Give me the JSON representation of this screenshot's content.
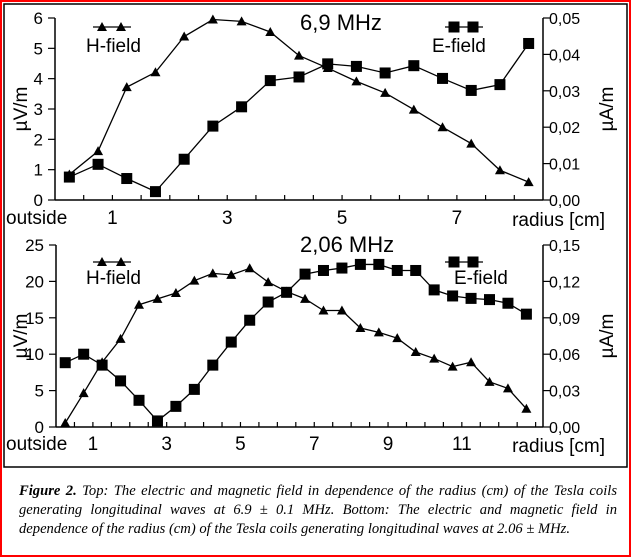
{
  "caption": {
    "label": "Figure 2.",
    "text": " Top: The electric and magnetic field in dependence of the radius (cm) of the Tesla coils generating longitudinal waves at 6.9 ± 0.1 MHz. Bottom: The electric and magnetic field in dependence of the radius (cm) of the Tesla coils generating longitudinal waves at 2.06 ± MHz."
  },
  "chart_data": [
    {
      "type": "line",
      "title": "6,9 MHz",
      "xlabel": "radius [cm]",
      "x_first_label": "outside",
      "ylabel_left": "µV/m",
      "ylabel_right": "µA/m",
      "xticks": [
        "1",
        "3",
        "5",
        "7"
      ],
      "xtick_values": [
        1,
        3,
        5,
        7
      ],
      "yticks_left": [
        "0",
        "1",
        "2",
        "3",
        "4",
        "5",
        "6"
      ],
      "yticks_right": [
        "0,00",
        "0,01",
        "0,02",
        "0,03",
        "0,04",
        "0,05"
      ],
      "xlim": [
        0,
        8.5
      ],
      "ylim_left": [
        0,
        6
      ],
      "ylim_right": [
        0,
        0.05
      ],
      "grid": false,
      "legend_placement": "top-left / top-right",
      "x": [
        0.25,
        0.75,
        1.25,
        1.75,
        2.25,
        2.75,
        3.25,
        3.75,
        4.25,
        4.75,
        5.25,
        5.75,
        6.25,
        6.75,
        7.25,
        7.75,
        8.25
      ],
      "series": [
        {
          "name": "H-field",
          "axis": "left",
          "marker": "triangle",
          "values": [
            0.84,
            1.61,
            3.72,
            4.21,
            5.39,
            5.95,
            5.89,
            5.54,
            4.76,
            4.35,
            3.91,
            3.53,
            2.98,
            2.4,
            1.86,
            0.98,
            0.59
          ]
        },
        {
          "name": "E-field",
          "axis": "right",
          "marker": "square",
          "values": [
            0.0063,
            0.0098,
            0.0059,
            0.0023,
            0.0112,
            0.0203,
            0.0256,
            0.0328,
            0.0338,
            0.0374,
            0.0367,
            0.0349,
            0.0369,
            0.0334,
            0.0301,
            0.0317,
            0.043
          ]
        }
      ]
    },
    {
      "type": "line",
      "title": "2,06 MHz",
      "xlabel": "radius [cm]",
      "x_first_label": "outside",
      "ylabel_left": "µV/m",
      "ylabel_right": "µA/m",
      "xticks": [
        "1",
        "3",
        "5",
        "7",
        "9",
        "11"
      ],
      "xtick_values": [
        1,
        3,
        5,
        7,
        9,
        11
      ],
      "yticks_left": [
        "0",
        "5",
        "10",
        "15",
        "20",
        "25"
      ],
      "yticks_right": [
        "0,00",
        "0,03",
        "0,06",
        "0,09",
        "0,12",
        "0,15"
      ],
      "xlim": [
        0,
        13.2
      ],
      "ylim_left": [
        0,
        25
      ],
      "ylim_right": [
        0,
        0.15
      ],
      "grid": false,
      "legend_placement": "top-left / top-right",
      "x": [
        0.25,
        0.75,
        1.25,
        1.75,
        2.25,
        2.75,
        3.25,
        3.75,
        4.25,
        4.75,
        5.25,
        5.75,
        6.25,
        6.75,
        7.25,
        7.75,
        8.25,
        8.75,
        9.25,
        9.75,
        10.25,
        10.75,
        11.25,
        11.75,
        12.25,
        12.75
      ],
      "series": [
        {
          "name": "H-field",
          "axis": "left",
          "marker": "triangle",
          "values": [
            0.55,
            4.66,
            8.9,
            12.1,
            16.8,
            17.6,
            18.4,
            20.1,
            21.1,
            20.9,
            21.8,
            19.9,
            18.6,
            17.6,
            16.0,
            16.0,
            13.6,
            13.0,
            12.2,
            10.3,
            9.4,
            8.3,
            8.9,
            6.2,
            5.3,
            2.5
          ]
        },
        {
          "name": "E-field",
          "axis": "right",
          "marker": "square",
          "values": [
            0.053,
            0.06,
            0.051,
            0.038,
            0.022,
            0.005,
            0.017,
            0.031,
            0.051,
            0.07,
            0.088,
            0.103,
            0.111,
            0.126,
            0.129,
            0.131,
            0.134,
            0.134,
            0.129,
            0.129,
            0.113,
            0.108,
            0.106,
            0.105,
            0.102,
            0.093
          ]
        }
      ]
    }
  ],
  "colors": {
    "border": "#ff0000",
    "ink": "#000000"
  }
}
